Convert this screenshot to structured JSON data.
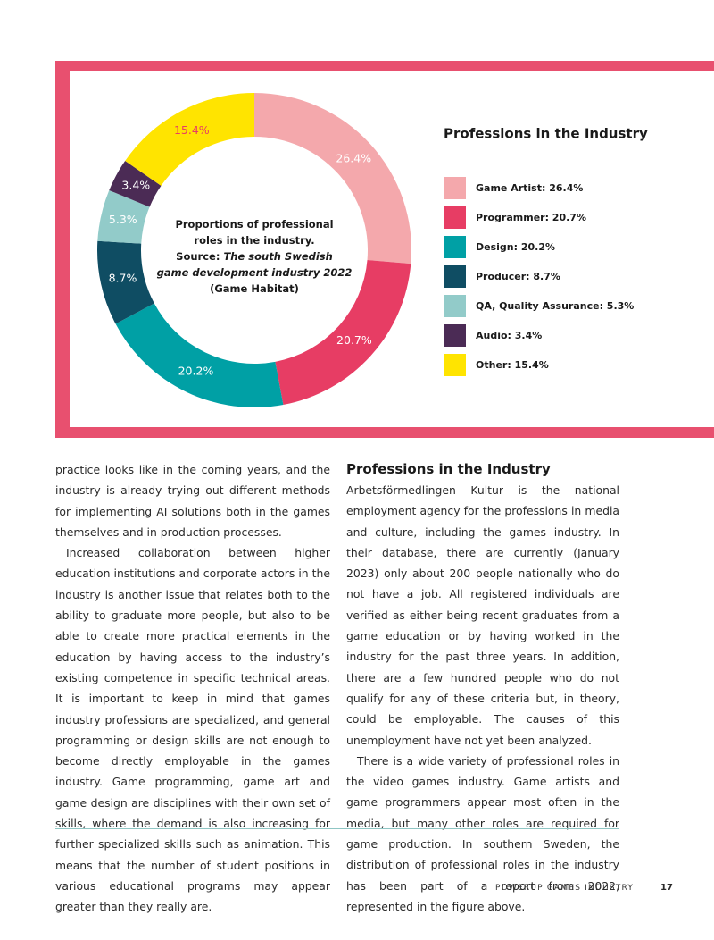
{
  "chart_data": {
    "type": "donut",
    "title": "Professions in the Industry",
    "center_text": [
      "Proportions of professional",
      "roles in the industry."
    ],
    "source_label": "Source:",
    "source_title": [
      "The south Swedish",
      "game development industry 2022"
    ],
    "source_publisher": "(Game Habitat)",
    "categories": [
      "Game Artist: 26.4%",
      "Programmer: 20.7%",
      "Design: 20.2%",
      "Producer: 8.7%",
      "QA, Quality Assurance: 5.3%",
      "Audio: 3.4%",
      "Other: 15.4%"
    ],
    "values": [
      26.4,
      20.7,
      20.2,
      8.7,
      5.3,
      3.4,
      15.4
    ],
    "value_labels": [
      "26.4%",
      "20.7%",
      "20.2%",
      "8.7%",
      "5.3%",
      "3.4%",
      "15.4%"
    ],
    "colors": [
      "#f4a8ac",
      "#e73d64",
      "#00a0a5",
      "#0f4d63",
      "#92cbc9",
      "#4b2b55",
      "#ffe400"
    ],
    "value_label_colors": [
      "#ffffff",
      "#ffffff",
      "#ffffff",
      "#ffffff",
      "#ffffff",
      "#ffffff",
      "#e73d64"
    ]
  },
  "document": {
    "left_paragraphs": [
      "practice looks like in the coming years, and the industry is already trying out different methods for implementing AI solutions both in the games themselves and in production processes.",
      "Increased collaboration between higher education institutions and corporate actors in the industry is another issue that relates both to the ability to graduate more people, but also to be able to create more practical elements in the education by having access to the industry’s existing competence in specific technical areas. It is important to keep in mind that games industry professions are specialized, and general programming or design skills are not enough to become directly employable in the games industry. Game programming, game art and game design are disciplines with their own set of skills, where the demand is also increasing for further specialized skills such as animation. This means that the number of student positions in various educational programs may appear greater than they really are."
    ],
    "right_heading": "Professions in the Industry",
    "right_paragraphs": [
      "Arbetsförmedlingen Kultur is the national employment agency for the professions in media and culture, including the games industry. In their database, there are currently (January 2023) only about 200 people nationally who do not have a job. All registered individuals are verified as either being recent graduates from a game education or by having worked in the industry for the past three years. In addition, there are a few hundred people who do not qualify for any of these criteria but, in theory, could be employable. The causes of this unemployment have not yet been analyzed.",
      "There is a wide variety of professional roles in the video games industry. Game artists and game programmers appear most often in the media, but many other roles are required for game production. In southern Sweden, the distribution of professional roles in the industry has been part of a report from 2022, represented in the figure above."
    ],
    "footer": "POWERUP GAMES INDUSTRY",
    "page_number": "17"
  }
}
